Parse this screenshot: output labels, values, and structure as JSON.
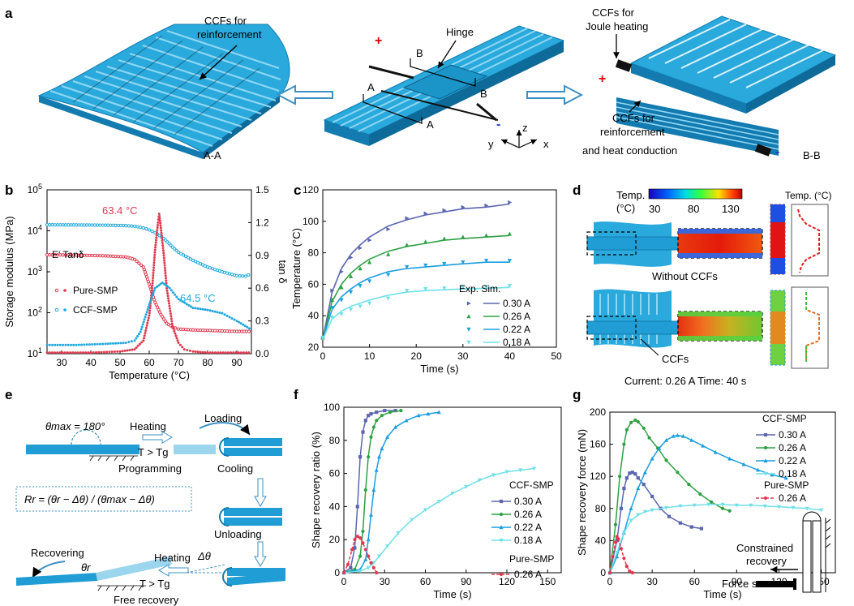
{
  "panel_letters": [
    "a",
    "b",
    "c",
    "d",
    "e",
    "f",
    "g"
  ],
  "colors": {
    "fiber": "#29a9dc",
    "fiber_dark": "#137bb0",
    "fiber_light": "#8fd6f2",
    "pure_smp": "#e0394f",
    "ccf_smp": "#1fa7de",
    "i030": "#5a66b0",
    "i026": "#2ea043",
    "i022": "#1b9de0",
    "i018": "#6fe0e8",
    "positive": "#e00000",
    "negative": "#1f3fbf"
  },
  "panel_a": {
    "left_label1": "CCFs for",
    "left_label2": "reinforcement",
    "left_caption": "A-A",
    "hinge": "Hinge",
    "sec_a": "A",
    "sec_b": "B",
    "plus": "+",
    "minus": "-",
    "axis_z": "z",
    "axis_y": "y",
    "axis_x": "x",
    "right_top1": "CCFs for",
    "right_top2": "Joule heating",
    "right_mid1": "CCFs for",
    "right_mid2": "reinforcement",
    "right_mid3": "and heat conduction",
    "right_caption": "B-B"
  },
  "panel_d": {
    "colorbar_title": "Temp.",
    "colorbar_unit": "(°C)",
    "ticks": [
      "30",
      "80",
      "130"
    ],
    "profile_title": "Temp. (°C)",
    "without": "Without CCFs",
    "with": "CCFs",
    "footer": "Current: 0.26 A Time: 40 s"
  },
  "panel_e": {
    "theta_max": "θmax = 180°",
    "heating1": "Heating",
    "cond1": "T > Tg",
    "loading": "Loading",
    "programming": "Programming",
    "cooling": "Cooling",
    "unloading": "Unloading",
    "formula": "Rr = (θr − Δθ) / (θmax − Δθ)",
    "recovering": "Recovering",
    "theta_r": "θr",
    "heating2": "Heating",
    "delta_theta": "Δθ",
    "cond2": "T > Tg",
    "free_recovery": "Free recovery"
  },
  "panel_g_inset": {
    "constrained1": "Constrained",
    "constrained2": "recovery",
    "sensor": "Force sensor"
  },
  "chart_data": [
    {
      "panel": "b",
      "type": "line",
      "xlabel": "Temperature (°C)",
      "ylabel": "Storage modulus (MPa)",
      "y2label": "tan δ",
      "xlim": [
        25,
        95
      ],
      "ylim_log": [
        10,
        100000
      ],
      "y2lim": [
        0,
        1.5
      ],
      "xticks": [
        "30",
        "40",
        "50",
        "60",
        "70",
        "80",
        "90"
      ],
      "yticks": [
        "10^1",
        "10^2",
        "10^3",
        "10^4",
        "10^5"
      ],
      "y2ticks": [
        "0.0",
        "0.3",
        "0.6",
        "0.9",
        "1.2",
        "1.5"
      ],
      "legend_header": "E' Tanδ",
      "annotations": [
        "63.4 °C",
        "64.5 °C"
      ],
      "series": [
        {
          "name": "Pure-SMP",
          "kind": "storage_modulus",
          "x": [
            25,
            35,
            45,
            52,
            55,
            58,
            60,
            62,
            64,
            66,
            68,
            70,
            75,
            80,
            85,
            90,
            95
          ],
          "y": [
            2600,
            2550,
            2450,
            2300,
            2000,
            1300,
            500,
            180,
            90,
            55,
            45,
            40,
            38,
            37,
            36,
            35,
            35
          ]
        },
        {
          "name": "CCF-SMP",
          "kind": "storage_modulus",
          "x": [
            25,
            35,
            45,
            52,
            55,
            58,
            60,
            62,
            65,
            68,
            70,
            75,
            80,
            85,
            90,
            93,
            95
          ],
          "y": [
            14000,
            13900,
            13700,
            13400,
            12900,
            11800,
            10500,
            9000,
            6500,
            4000,
            3000,
            1900,
            1300,
            1000,
            800,
            780,
            900
          ]
        },
        {
          "name": "Pure-SMP",
          "kind": "tan_delta",
          "x": [
            25,
            40,
            50,
            55,
            58,
            60,
            61,
            62,
            63,
            63.4,
            64,
            65,
            66,
            68,
            70,
            72,
            75,
            80,
            95
          ],
          "y": [
            0.01,
            0.01,
            0.02,
            0.04,
            0.12,
            0.35,
            0.6,
            0.95,
            1.2,
            1.28,
            1.15,
            0.9,
            0.6,
            0.25,
            0.1,
            0.04,
            0.02,
            0.01,
            0.01
          ]
        },
        {
          "name": "CCF-SMP",
          "kind": "tan_delta",
          "x": [
            25,
            35,
            45,
            52,
            55,
            57,
            60,
            62,
            64.5,
            67,
            70,
            75,
            80,
            85,
            90,
            95
          ],
          "y": [
            0.08,
            0.08,
            0.09,
            0.1,
            0.12,
            0.2,
            0.45,
            0.6,
            0.65,
            0.6,
            0.5,
            0.42,
            0.4,
            0.37,
            0.3,
            0.22
          ]
        }
      ]
    },
    {
      "panel": "c",
      "type": "line",
      "xlabel": "Time (s)",
      "ylabel": "Temperature (°C)",
      "xlim": [
        0,
        50
      ],
      "ylim": [
        20,
        120
      ],
      "xticks": [
        "0",
        "10",
        "20",
        "30",
        "40",
        "50"
      ],
      "yticks": [
        "20",
        "40",
        "60",
        "80",
        "100",
        "120"
      ],
      "legend_header": "Exp. Sim.",
      "series": [
        {
          "name": "0.30 A",
          "x": [
            0,
            2,
            4,
            6,
            8,
            10,
            14,
            18,
            22,
            26,
            30,
            35,
            40
          ],
          "y": [
            25,
            55,
            70,
            79,
            85,
            90,
            97,
            101,
            104,
            106,
            108,
            109,
            111
          ]
        },
        {
          "name": "0.26 A",
          "x": [
            0,
            2,
            4,
            6,
            8,
            10,
            14,
            18,
            22,
            26,
            30,
            35,
            40
          ],
          "y": [
            25,
            49,
            60,
            67,
            72,
            76,
            81,
            84,
            86,
            88,
            89,
            90,
            91
          ]
        },
        {
          "name": "0.22 A",
          "x": [
            0,
            2,
            4,
            6,
            8,
            10,
            14,
            18,
            22,
            26,
            30,
            35,
            40
          ],
          "y": [
            25,
            44,
            52,
            57,
            61,
            64,
            68,
            70,
            71,
            72,
            73,
            74,
            74
          ]
        },
        {
          "name": "0.18 A",
          "x": [
            0,
            2,
            4,
            6,
            8,
            10,
            14,
            18,
            22,
            26,
            30,
            35,
            40
          ],
          "y": [
            25,
            38,
            43,
            46,
            48,
            50,
            53,
            55,
            56,
            56.5,
            57,
            57.5,
            58
          ]
        }
      ]
    },
    {
      "panel": "f",
      "type": "line",
      "xlabel": "Time (s)",
      "ylabel": "Shape recovery ratio (%)",
      "xlim": [
        0,
        160
      ],
      "ylim": [
        0,
        100
      ],
      "xticks": [
        "0",
        "30",
        "60",
        "90",
        "120",
        "150"
      ],
      "yticks": [
        "0",
        "20",
        "40",
        "60",
        "80",
        "100"
      ],
      "legend_groups": [
        "CCF-SMP",
        "Pure-SMP"
      ],
      "series": [
        {
          "name": "0.30 A",
          "group": "CCF-SMP",
          "x": [
            0,
            5,
            8,
            10,
            12,
            14,
            16,
            18,
            20,
            24,
            30,
            38
          ],
          "y": [
            0,
            3,
            15,
            40,
            70,
            85,
            92,
            95,
            96,
            97,
            98,
            98
          ]
        },
        {
          "name": "0.26 A",
          "group": "CCF-SMP",
          "x": [
            0,
            8,
            12,
            14,
            16,
            18,
            20,
            22,
            24,
            28,
            34,
            42
          ],
          "y": [
            0,
            2,
            10,
            25,
            50,
            70,
            82,
            88,
            92,
            95,
            97,
            98
          ]
        },
        {
          "name": "0.22 A",
          "group": "CCF-SMP",
          "x": [
            0,
            12,
            16,
            18,
            20,
            22,
            24,
            26,
            28,
            32,
            38,
            46,
            55,
            62,
            70
          ],
          "y": [
            0,
            2,
            8,
            20,
            35,
            50,
            62,
            70,
            75,
            82,
            88,
            92,
            95,
            96,
            97
          ]
        },
        {
          "name": "0.18 A",
          "group": "CCF-SMP",
          "x": [
            0,
            12,
            18,
            22,
            26,
            32,
            40,
            50,
            60,
            70,
            80,
            90,
            100,
            110,
            120,
            130,
            140
          ],
          "y": [
            0,
            1,
            3,
            6,
            10,
            16,
            24,
            32,
            38,
            43,
            48,
            52,
            56,
            59,
            61,
            62,
            63
          ]
        },
        {
          "name": "0.26 A",
          "group": "Pure-SMP",
          "x": [
            0,
            3,
            6,
            8,
            10,
            12,
            14,
            16,
            18,
            20,
            22,
            24
          ],
          "y": [
            0,
            5,
            14,
            20,
            22,
            21,
            18,
            14,
            10,
            6,
            3,
            0
          ]
        }
      ]
    },
    {
      "panel": "g",
      "type": "line",
      "xlabel": "Time (s)",
      "ylabel": "Shape recovery force (mN)",
      "xlim": [
        0,
        160
      ],
      "ylim": [
        0,
        200
      ],
      "xticks": [
        "0",
        "30",
        "60",
        "90",
        "120",
        "150"
      ],
      "yticks": [
        "0",
        "40",
        "80",
        "120",
        "160",
        "200"
      ],
      "legend_groups": [
        "CCF-SMP",
        "Pure-SMP"
      ],
      "series": [
        {
          "name": "0.30 A",
          "group": "CCF-SMP",
          "x": [
            0,
            5,
            8,
            10,
            12,
            14,
            16,
            18,
            20,
            24,
            30,
            36,
            42,
            50,
            58,
            65
          ],
          "y": [
            0,
            40,
            80,
            105,
            118,
            124,
            125,
            123,
            118,
            110,
            95,
            80,
            70,
            62,
            57,
            55
          ]
        },
        {
          "name": "0.26 A",
          "group": "CCF-SMP",
          "x": [
            0,
            4,
            7,
            10,
            12,
            15,
            18,
            20,
            24,
            28,
            34,
            40,
            48,
            56,
            64,
            72,
            80,
            85
          ],
          "y": [
            0,
            60,
            120,
            160,
            178,
            187,
            190,
            188,
            180,
            168,
            155,
            140,
            125,
            110,
            98,
            88,
            80,
            77
          ]
        },
        {
          "name": "0.22 A",
          "group": "CCF-SMP",
          "x": [
            0,
            5,
            10,
            15,
            20,
            25,
            30,
            35,
            40,
            45,
            48,
            52,
            58,
            66,
            75,
            85,
            95,
            105,
            115,
            125
          ],
          "y": [
            0,
            20,
            50,
            80,
            105,
            125,
            142,
            155,
            165,
            170,
            171,
            170,
            165,
            158,
            150,
            142,
            135,
            128,
            122,
            118
          ]
        },
        {
          "name": "0.18 A",
          "group": "CCF-SMP",
          "x": [
            0,
            5,
            10,
            15,
            20,
            25,
            30,
            40,
            50,
            60,
            70,
            80,
            90,
            100,
            110,
            120,
            130,
            140,
            150
          ],
          "y": [
            0,
            25,
            50,
            65,
            72,
            76,
            78,
            81,
            83,
            84,
            85,
            85,
            84,
            84,
            83,
            82,
            81,
            80,
            78
          ]
        },
        {
          "name": "0.26 A",
          "group": "Pure-SMP",
          "x": [
            0,
            2,
            4,
            5,
            6,
            8,
            10,
            12,
            14,
            16
          ],
          "y": [
            0,
            20,
            38,
            45,
            42,
            30,
            18,
            8,
            2,
            0
          ]
        }
      ]
    }
  ]
}
